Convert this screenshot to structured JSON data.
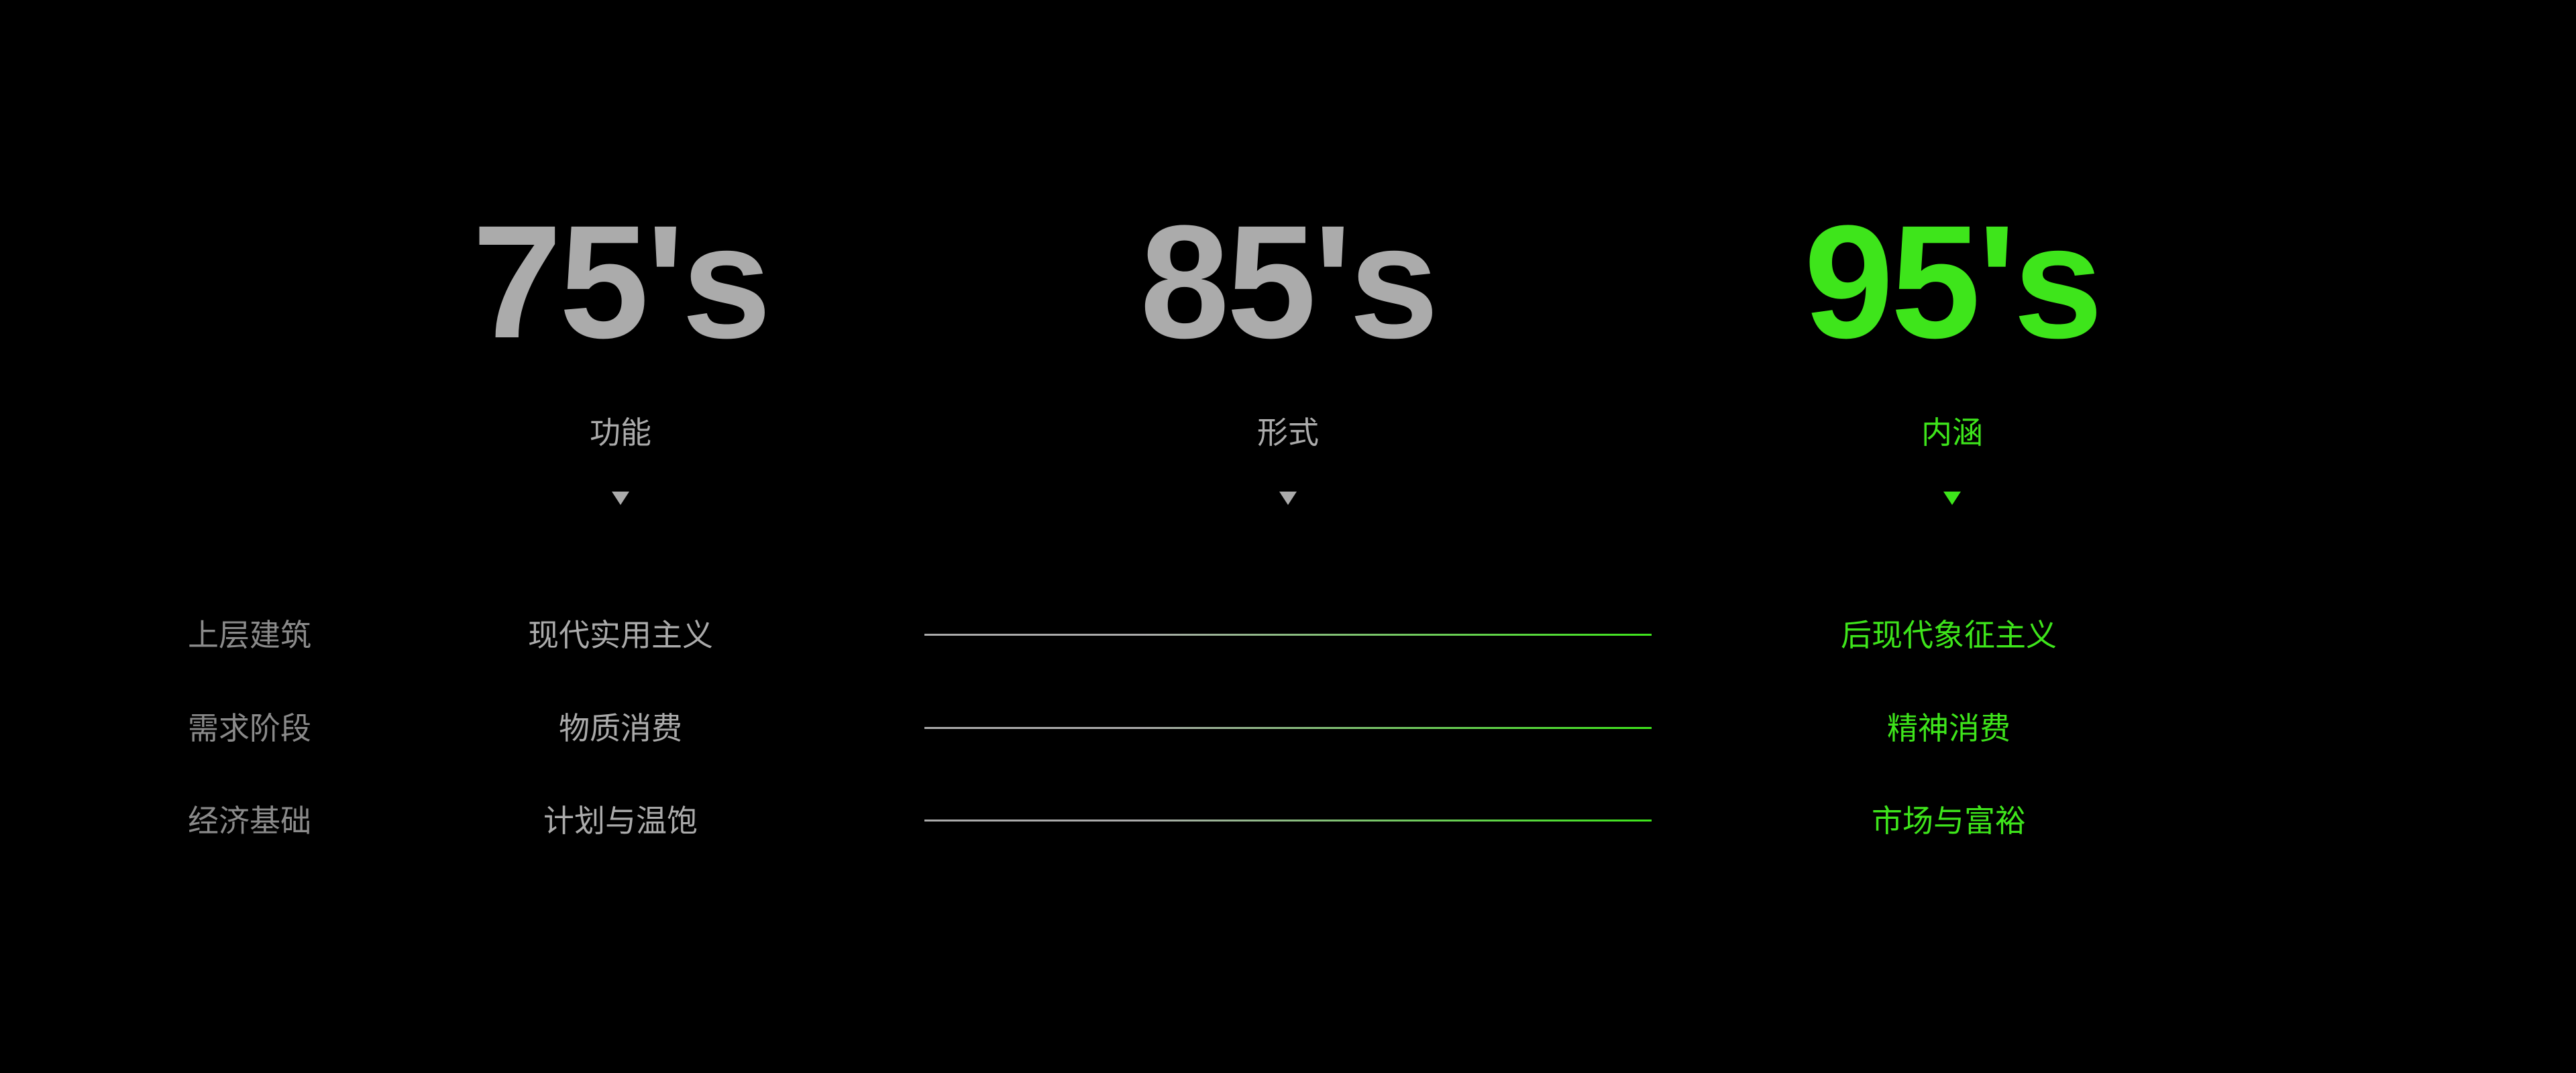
{
  "columns": [
    {
      "year": "75's",
      "label": "功能"
    },
    {
      "year": "85's",
      "label": "形式"
    },
    {
      "year": "95's",
      "label": "内涵"
    }
  ],
  "rows": [
    {
      "label": "上层建筑",
      "from": "现代实用主义",
      "to": "后现代象征主义"
    },
    {
      "label": "需求阶段",
      "from": "物质消费",
      "to": "精神消费"
    },
    {
      "label": "经济基础",
      "from": "计划与温饱",
      "to": "市场与富裕"
    }
  ],
  "colors": {
    "background": "#000000",
    "muted": "#ababab",
    "row_label": "#8a8a8a",
    "accent": "#3ee51b"
  },
  "icons": {
    "column_marker": "triangle-down-icon"
  }
}
